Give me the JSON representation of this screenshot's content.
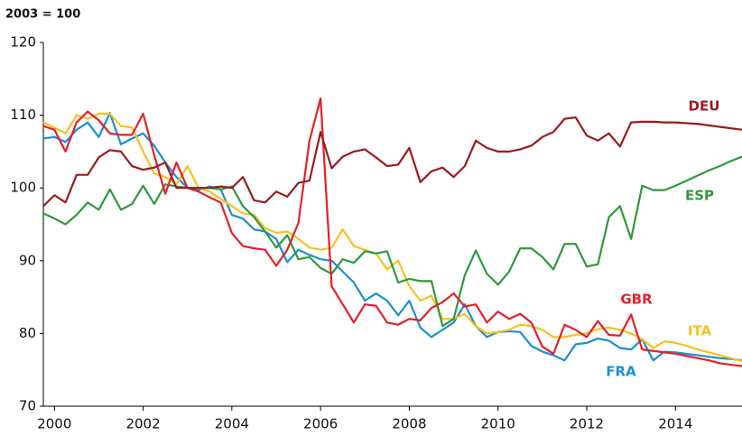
{
  "chart_data": {
    "type": "line",
    "title": "2003 = 100",
    "x": [
      1999.75,
      2000,
      2000.25,
      2000.5,
      2000.75,
      2001,
      2001.25,
      2001.5,
      2001.75,
      2002,
      2002.25,
      2002.5,
      2002.75,
      2003,
      2003.25,
      2003.5,
      2003.75,
      2004,
      2004.25,
      2004.5,
      2004.75,
      2005,
      2005.25,
      2005.5,
      2005.75,
      2006,
      2006.25,
      2006.5,
      2006.75,
      2007,
      2007.25,
      2007.5,
      2007.75,
      2008,
      2008.25,
      2008.5,
      2008.75,
      2009,
      2009.25,
      2009.5,
      2009.75,
      2010,
      2010.25,
      2010.5,
      2010.75,
      2011,
      2011.25,
      2011.5,
      2011.75,
      2012,
      2012.25,
      2012.5,
      2012.75,
      2013,
      2013.25,
      2013.5,
      2013.75,
      2014,
      2014.25,
      2014.5,
      2014.75,
      2015,
      2015.25,
      2015.5
    ],
    "series": [
      {
        "name": "FRA",
        "color": "#1b8fd2",
        "values": [
          106.8,
          107,
          106.3,
          108,
          109,
          107,
          110.3,
          106,
          106.8,
          107.5,
          105.8,
          103.5,
          101.5,
          100,
          99.7,
          100.2,
          99.8,
          96.3,
          95.8,
          94.3,
          94,
          93,
          89.8,
          91.5,
          90.8,
          90.2,
          90,
          88.5,
          87,
          84.5,
          85.5,
          84.5,
          82.5,
          84.5,
          80.8,
          79.5,
          80.5,
          81.5,
          84,
          81,
          79.5,
          80.2,
          80.3,
          80.2,
          78.3,
          77.5,
          77,
          76.3,
          78.5,
          78.7,
          79.3,
          79,
          78,
          77.8,
          79.2,
          76.3,
          77.5,
          77.4,
          77.2,
          77,
          76.8,
          76.6,
          76.5,
          76.3
        ]
      },
      {
        "name": "ITA",
        "color": "#f7c11f",
        "values": [
          109,
          108.3,
          107.5,
          110,
          109.5,
          110.2,
          110.2,
          108.5,
          108.3,
          105,
          102,
          101.5,
          100.5,
          103,
          100,
          99.5,
          98.5,
          97.5,
          96.5,
          96.3,
          94.5,
          93.8,
          94,
          93,
          91.8,
          91.5,
          91.8,
          94.3,
          92,
          91.5,
          91,
          88.8,
          90,
          86.5,
          84.5,
          85.2,
          82,
          82,
          82.7,
          81,
          80,
          80.2,
          80.5,
          81.2,
          81,
          80.5,
          79.5,
          79.5,
          79.8,
          80,
          80.6,
          80.8,
          80.5,
          80,
          79.2,
          78,
          78.9,
          78.7,
          78.3,
          77.8,
          77.4,
          77,
          76.6,
          76.2
        ]
      },
      {
        "name": "ESP",
        "color": "#2e9a3b",
        "values": [
          96.5,
          95.8,
          95,
          96.3,
          98,
          97,
          99.8,
          97,
          97.8,
          100.3,
          97.8,
          100.5,
          100.2,
          100,
          100,
          100,
          99.8,
          100.2,
          97.5,
          96,
          94,
          91.8,
          93.5,
          90.2,
          90.5,
          89,
          88.2,
          90.2,
          89.7,
          91.3,
          91,
          91.3,
          87,
          87.5,
          87.2,
          87.2,
          81,
          82,
          88,
          91.4,
          88.2,
          86.7,
          88.5,
          91.7,
          91.7,
          90.5,
          88.8,
          92.3,
          92.3,
          89.2,
          89.5,
          96,
          97.5,
          93,
          100.3,
          99.7,
          99.7,
          100.3,
          101,
          101.7,
          102.4,
          103,
          103.7,
          104.3
        ]
      },
      {
        "name": "GBR",
        "color": "#e4202a",
        "values": [
          108.5,
          108,
          105,
          109,
          110.5,
          109.3,
          107.5,
          107.3,
          107.3,
          110.2,
          104.5,
          99.2,
          103.5,
          100,
          99.5,
          98.7,
          98,
          93.8,
          92,
          91.7,
          91.5,
          89.3,
          91.5,
          95.2,
          106.5,
          112.3,
          86.5,
          84,
          81.5,
          84,
          83.8,
          81.5,
          81.2,
          82,
          81.8,
          83.5,
          84.3,
          85.5,
          83.7,
          84,
          81.5,
          83,
          82,
          82.7,
          81.5,
          78.2,
          77.2,
          81.2,
          80.5,
          79.5,
          81.7,
          79.8,
          79.7,
          82.6,
          77.8,
          77.6,
          77.4,
          77.2,
          76.9,
          76.6,
          76.3,
          75.9,
          75.7,
          75.5
        ]
      },
      {
        "name": "DEU",
        "color": "#9b1b1f",
        "values": [
          97.5,
          99,
          98,
          101.8,
          101.8,
          104.2,
          105.2,
          105,
          103,
          102.5,
          102.8,
          103.5,
          100,
          100,
          100,
          100,
          100.2,
          100,
          101.5,
          98.3,
          98,
          99.5,
          98.8,
          100.7,
          101,
          107.7,
          102.7,
          104.3,
          105,
          105.3,
          104.2,
          103,
          103.2,
          105.5,
          100.8,
          102.3,
          102.8,
          101.5,
          103,
          106.5,
          105.5,
          105,
          105,
          105.3,
          105.8,
          107,
          107.7,
          109.5,
          109.7,
          107.2,
          106.5,
          107.5,
          105.7,
          109,
          109.1,
          109.1,
          109,
          109,
          108.9,
          108.8,
          108.6,
          108.4,
          108.2,
          108
        ]
      }
    ],
    "xlim": [
      1999.75,
      2015.5
    ],
    "xticks": [
      2000,
      2002,
      2004,
      2006,
      2008,
      2010,
      2012,
      2014
    ],
    "ylim": [
      70,
      120
    ],
    "yticks": [
      70,
      80,
      90,
      100,
      110,
      120
    ],
    "grid": false
  }
}
